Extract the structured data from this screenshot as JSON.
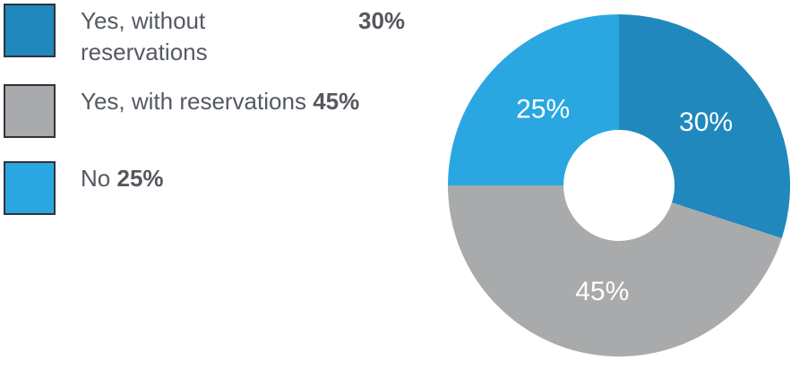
{
  "chart_data": {
    "type": "pie",
    "categories": [
      "Yes, without reservations",
      "Yes, with reservations",
      "No"
    ],
    "values": [
      30,
      45,
      25
    ],
    "value_labels": [
      "30%",
      "45%",
      "25%"
    ],
    "colors": [
      "#2088bd",
      "#a9aaac",
      "#2aa7e1"
    ],
    "legend": [
      {
        "label_line1": "Yes, without",
        "label_line2": "reservations",
        "pct": "30%"
      },
      {
        "label": "Yes, with reservations",
        "pct": "45%"
      },
      {
        "label": "No",
        "pct": "25%"
      }
    ],
    "legend_position": "left",
    "donut": true
  }
}
